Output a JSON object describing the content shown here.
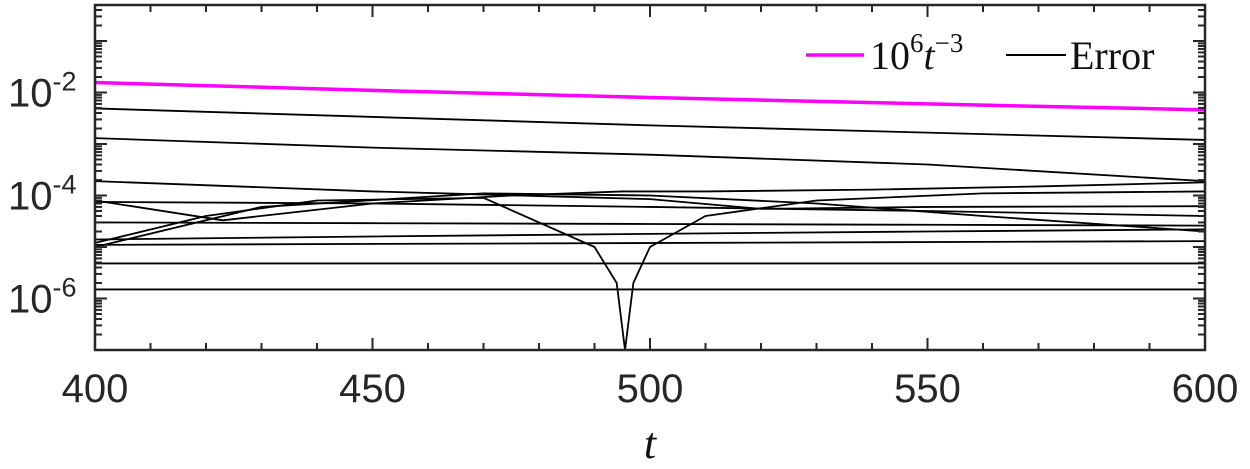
{
  "chart_data": {
    "type": "line",
    "xlabel": "t",
    "xlim": [
      400,
      600
    ],
    "yscale": "log",
    "ylim": [
      1e-07,
      0.5
    ],
    "xticks": [
      400,
      450,
      500,
      550,
      600
    ],
    "xtick_labels": [
      "400",
      "450",
      "500",
      "550",
      "600"
    ],
    "yticks": [
      1e-06,
      0.0001,
      0.01
    ],
    "ytick_labels": [
      {
        "base": "10",
        "exp": "-6"
      },
      {
        "base": "10",
        "exp": "-4"
      },
      {
        "base": "10",
        "exp": "-2"
      }
    ],
    "grid": false,
    "legend_position": "top-right",
    "legend": [
      {
        "label_base": "10",
        "label_sup": "6",
        "label_var": "t",
        "label_var_sup": "−3",
        "color": "#ff00ff"
      },
      {
        "label": "Error",
        "color": "#000000"
      }
    ],
    "series": [
      {
        "name": "10^6 t^-3",
        "color": "#ff00ff",
        "x": [
          400,
          450,
          500,
          550,
          600
        ],
        "y": [
          0.0156,
          0.011,
          0.008,
          0.006,
          0.0046
        ]
      },
      {
        "color": "#000000",
        "x": [
          400,
          500,
          600
        ],
        "y": [
          0.0049,
          0.0023,
          0.0012
        ]
      },
      {
        "color": "#000000",
        "x": [
          400,
          450,
          500,
          550,
          600
        ],
        "y": [
          0.0013,
          0.00085,
          0.00062,
          0.0004,
          0.00019
        ]
      },
      {
        "color": "#000000",
        "x": [
          400,
          450,
          500,
          520,
          550,
          600
        ],
        "y": [
          0.00019,
          0.00012,
          8.5e-05,
          5.5e-05,
          6e-05,
          6.2e-05
        ]
      },
      {
        "color": "#000000",
        "x": [
          400,
          430,
          470,
          500,
          530,
          560,
          600
        ],
        "y": [
          1e-05,
          6e-05,
          0.00011,
          0.0001,
          7e-05,
          4e-05,
          2e-05
        ]
      },
      {
        "color": "#000000",
        "x": [
          400,
          423,
          450,
          475,
          495,
          500,
          510,
          540,
          570,
          600
        ],
        "y": [
          8e-05,
          3.3e-05,
          7e-05,
          0.0001,
          0.00012,
          0.00012,
          0.00012,
          0.00013,
          0.00015,
          0.00018
        ]
      },
      {
        "color": "#000000",
        "x": [
          400,
          420,
          440,
          470,
          490,
          494,
          495.5,
          497,
          500,
          510,
          530,
          560,
          600
        ],
        "y": [
          1.2e-05,
          4e-05,
          8e-05,
          9e-05,
          1e-05,
          2e-06,
          1e-07,
          2e-06,
          1e-05,
          4e-05,
          8e-05,
          0.00011,
          0.00012
        ]
      },
      {
        "color": "#000000",
        "x": [
          400,
          450,
          500,
          550,
          600
        ],
        "y": [
          7.5e-05,
          7e-05,
          6e-05,
          5e-05,
          4e-05
        ]
      },
      {
        "color": "#000000",
        "x": [
          400,
          450,
          500,
          550,
          600
        ],
        "y": [
          3e-05,
          2.9e-05,
          2.8e-05,
          2.7e-05,
          2.6e-05
        ]
      },
      {
        "color": "#000000",
        "x": [
          400,
          450,
          500,
          550,
          600
        ],
        "y": [
          1.4e-05,
          1.6e-05,
          1.8e-05,
          2e-05,
          2.2e-05
        ]
      },
      {
        "color": "#000000",
        "x": [
          400,
          600
        ],
        "y": [
          1.1e-05,
          1.3e-05
        ]
      },
      {
        "color": "#000000",
        "x": [
          400,
          600
        ],
        "y": [
          4.8e-06,
          4.8e-06
        ]
      },
      {
        "color": "#000000",
        "x": [
          400,
          600
        ],
        "y": [
          1.5e-06,
          1.5e-06
        ]
      }
    ]
  }
}
